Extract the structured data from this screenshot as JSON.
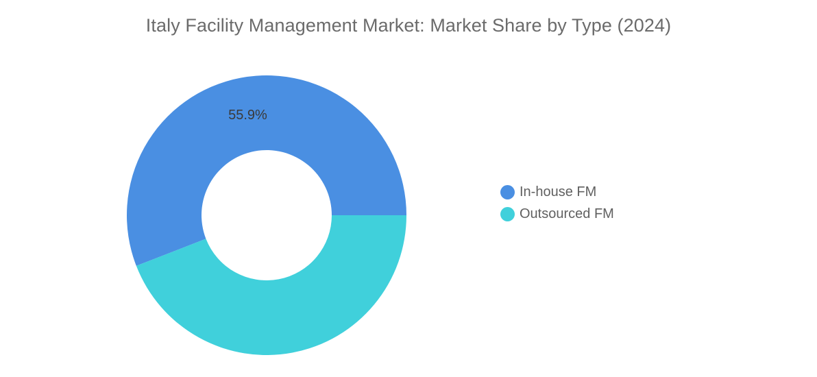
{
  "chart_data": {
    "type": "pie",
    "donut": true,
    "title": "Italy Facility Management Market: Market Share by Type (2024)",
    "categories": [
      "In-house FM",
      "Outsourced FM"
    ],
    "values": [
      55.9,
      44.1
    ],
    "unit": "%",
    "data_labels": [
      "55.9%",
      ""
    ],
    "colors": [
      "#4a8fe2",
      "#40d0db"
    ],
    "legend": {
      "position": "right",
      "items": [
        {
          "label": "In-house FM",
          "color": "#4a8fe2"
        },
        {
          "label": "Outsourced FM",
          "color": "#40d0db"
        }
      ]
    }
  }
}
